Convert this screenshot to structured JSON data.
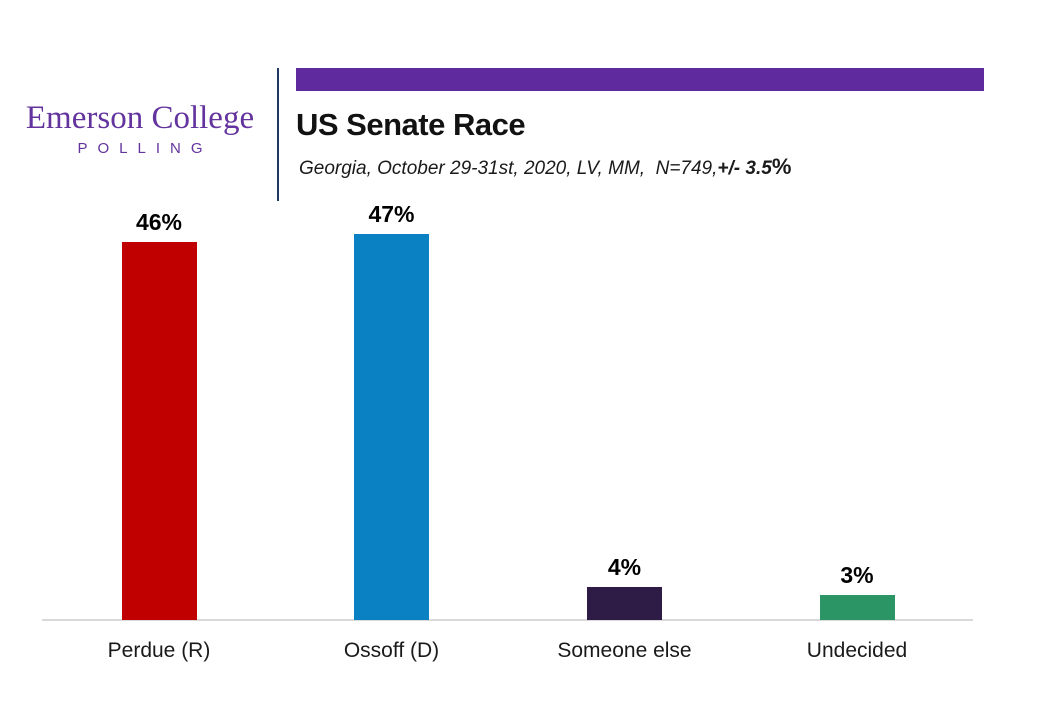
{
  "brand": {
    "name": "Emerson College",
    "subname": "POLLING",
    "logo_color": "#63339e"
  },
  "header": {
    "title": "US Senate Race",
    "subtitle_main": "Georgia, October 29-31st, 2020, LV, MM,  N=749,",
    "subtitle_moe": "+/- 3.5",
    "subtitle_pct": "%",
    "banner_color": "#5f2a9e"
  },
  "chart_data": {
    "type": "bar",
    "title": "US Senate Race",
    "subtitle": "Georgia, October 29-31st, 2020, LV, MM,  N=749, +/- 3.5%",
    "categories": [
      "Perdue (R)",
      "Ossoff (D)",
      "Someone else",
      "Undecided"
    ],
    "values": [
      46,
      47,
      4,
      3
    ],
    "value_labels": [
      "46%",
      "47%",
      "4%",
      "3%"
    ],
    "colors": [
      "#c00000",
      "#0981c2",
      "#2e1c47",
      "#2b9565"
    ],
    "xlabel": "",
    "ylabel": "",
    "ylim": [
      0,
      50
    ],
    "grid": false,
    "legend": false,
    "y_axis_visible": false,
    "value_label_position": "above",
    "axis_line_color": "#d9d9d9"
  }
}
